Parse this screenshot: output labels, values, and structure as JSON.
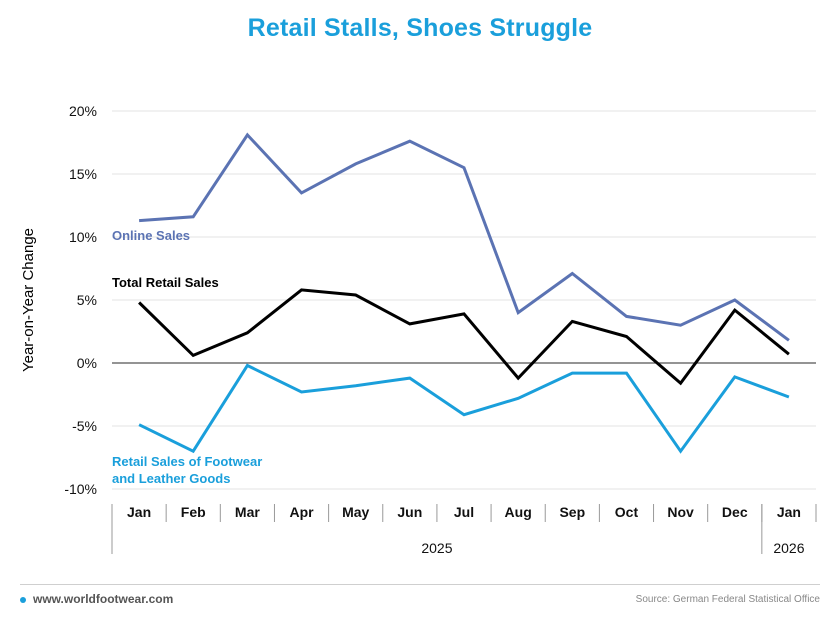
{
  "footer": {
    "site": "www.worldfootwear.com",
    "source": "Source: German Federal Statistical Office"
  },
  "colors": {
    "title": "#1a9fdb",
    "online": "#5b73b3",
    "total": "#000000",
    "footwear": "#1a9fdb"
  },
  "chart_data": {
    "type": "line",
    "title": "Retail Stalls, Shoes Struggle",
    "ylabel": "Year-on-Year Change",
    "xlabel": "",
    "ylim": [
      -10,
      20
    ],
    "yticks": [
      20,
      15,
      10,
      5,
      0,
      -5,
      -10
    ],
    "ytick_labels": [
      "20%",
      "15%",
      "10%",
      "5%",
      "0%",
      "-5%",
      "-10%"
    ],
    "categories": [
      "Jan",
      "Feb",
      "Mar",
      "Apr",
      "May",
      "Jun",
      "Jul",
      "Aug",
      "Sep",
      "Oct",
      "Nov",
      "Dec",
      "Jan"
    ],
    "year_groups": [
      {
        "label": "2025",
        "start": 0,
        "end": 11
      },
      {
        "label": "2026",
        "start": 12,
        "end": 12
      }
    ],
    "series": [
      {
        "name": "Online Sales",
        "label": "Online Sales",
        "values": [
          11.3,
          11.6,
          18.1,
          13.5,
          15.8,
          17.6,
          15.5,
          4.0,
          7.1,
          3.7,
          3.0,
          5.0,
          1.8
        ]
      },
      {
        "name": "Total Retail Sales",
        "label": "Total Retail Sales",
        "values": [
          4.8,
          0.6,
          2.4,
          5.8,
          5.4,
          3.1,
          3.9,
          -1.2,
          3.3,
          2.1,
          -1.6,
          4.2,
          0.7
        ]
      },
      {
        "name": "Retail Sales of Footwear and Leather Goods",
        "label_lines": [
          "Retail Sales of Footwear",
          "and Leather Goods"
        ],
        "values": [
          -4.9,
          -7.0,
          -0.2,
          -2.3,
          -1.8,
          -1.2,
          -4.1,
          -2.8,
          -0.8,
          -0.8,
          -7.0,
          -1.1,
          -2.7
        ]
      }
    ]
  }
}
